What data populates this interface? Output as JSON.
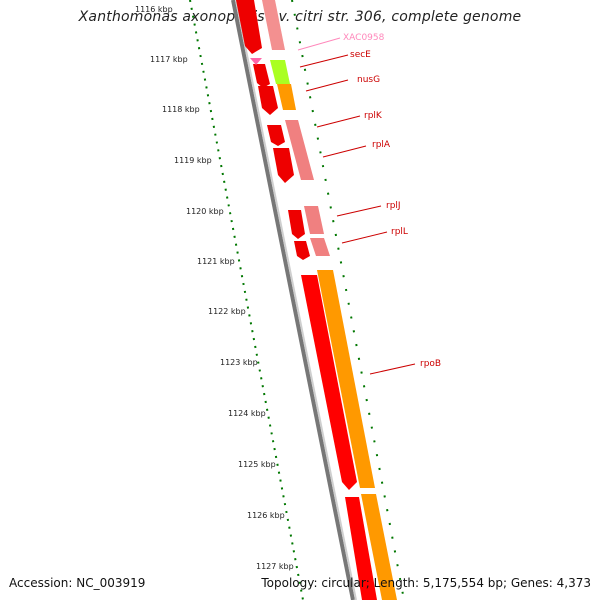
{
  "header": {
    "title": "Xanthomonas axonopodis pv. citri str. 306, complete genome"
  },
  "footer": {
    "accession": "Accession: NC_003919",
    "stats": "Topology: circular; Length: 5,175,554 bp; Genes: 4,373"
  },
  "ruler": {
    "labels": [
      "1116 kbp",
      "1117 kbp",
      "1118 kbp",
      "1119 kbp",
      "1120 kbp",
      "1121 kbp",
      "1122 kbp",
      "1123 kbp",
      "1124 kbp",
      "1125 kbp",
      "1126 kbp",
      "1127 kbp"
    ]
  },
  "colors": {
    "cds": "#ff0000",
    "trna": "#f08080",
    "secE": "#aaff00",
    "nusG": "#ff9900",
    "rpoB": "#ff9900",
    "xac": "#ff99cc",
    "label_red": "#cc0000",
    "label_pink": "#ff88bb",
    "backbone": "#888888",
    "ruler_dots": "#007700"
  },
  "genes": [
    {
      "name": "XAC0958",
      "color": "label_pink"
    },
    {
      "name": "secE",
      "color": "label_red"
    },
    {
      "name": "nusG",
      "color": "label_red"
    },
    {
      "name": "rplK",
      "color": "label_red"
    },
    {
      "name": "rplA",
      "color": "label_red"
    },
    {
      "name": "rplJ",
      "color": "label_red"
    },
    {
      "name": "rplL",
      "color": "label_red"
    },
    {
      "name": "rpoB",
      "color": "label_red"
    }
  ]
}
